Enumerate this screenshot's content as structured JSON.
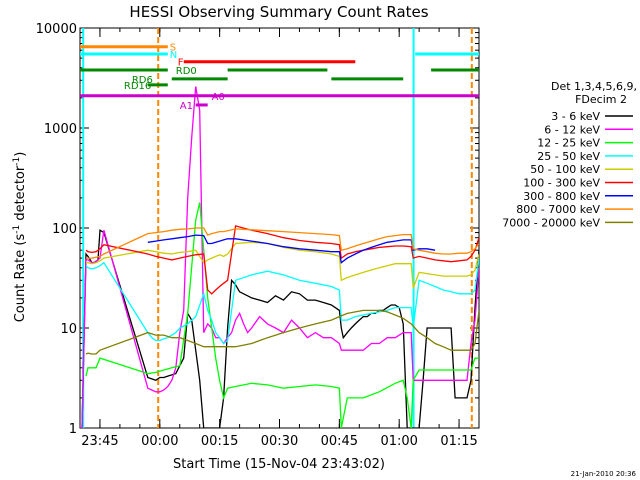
{
  "chart_data": {
    "type": "line",
    "title": "HESSI Observing Summary Count Rates",
    "xlabel": "Start Time (15-Nov-04 23:43:02)",
    "ylabel_main": "Count Rate (s",
    "ylabel_sup1": "-1",
    "ylabel_mid": " detector",
    "ylabel_sup2": "-1",
    "ylabel_end": ")",
    "yscale": "log",
    "ylim": [
      1,
      10000
    ],
    "xlim_minutes": [
      -3,
      97
    ],
    "x_ticks": [
      {
        "label": "23:45",
        "m": 2
      },
      {
        "label": "00:00",
        "m": 17
      },
      {
        "label": "00:15",
        "m": 32
      },
      {
        "label": "00:30",
        "m": 47
      },
      {
        "label": "00:45",
        "m": 62
      },
      {
        "label": "01:00",
        "m": 77
      },
      {
        "label": "01:15",
        "m": 92
      }
    ],
    "y_ticks": [
      {
        "label": "1",
        "v": 1
      },
      {
        "label": "10",
        "v": 10
      },
      {
        "label": "100",
        "v": 100
      },
      {
        "label": "1000",
        "v": 1000
      },
      {
        "label": "10000",
        "v": 10000
      }
    ],
    "legend_header": [
      "Det 1,3,4,5,6,9,",
      "FDecim 2"
    ],
    "series": [
      {
        "name": "3 - 6 keV",
        "color": "#000000",
        "x": [
          -3,
          -2.5,
          -1.5,
          -1,
          0,
          0.5,
          1.5,
          2,
          3,
          14,
          15,
          16,
          16.5,
          17,
          18,
          19,
          21,
          23,
          24,
          25,
          26,
          27,
          28,
          29,
          30,
          31,
          32,
          33,
          34,
          35,
          36,
          37,
          38,
          39,
          40,
          42,
          44,
          46,
          48,
          50,
          52,
          54,
          56,
          58,
          60,
          62,
          62.5,
          63,
          64,
          65,
          66,
          67,
          68,
          69,
          70,
          71,
          72,
          73,
          74,
          75,
          76,
          77,
          78,
          79,
          80,
          80.5,
          81,
          82,
          83,
          84,
          90,
          91,
          92,
          93,
          94,
          95,
          96,
          97
        ],
        "y": [
          1,
          1,
          55,
          52,
          45,
          45,
          48,
          95,
          90,
          3.2,
          3.1,
          3.0,
          3.1,
          3.2,
          3.2,
          3.3,
          3.5,
          5,
          14,
          12,
          6,
          3,
          1,
          1,
          1,
          1,
          1,
          2,
          10,
          30,
          27,
          23,
          22,
          21,
          20,
          19,
          18,
          21,
          19,
          23,
          22,
          19,
          19,
          18,
          17,
          15,
          10,
          8,
          9,
          10,
          11,
          12,
          13,
          13,
          14,
          14,
          15,
          15,
          16,
          17,
          17,
          16,
          11,
          1,
          1,
          1,
          1,
          1,
          3,
          10,
          10,
          2,
          2,
          2,
          2,
          3,
          16,
          60
        ]
      },
      {
        "name": "6 - 12 keV",
        "color": "#ff00ff",
        "x": [
          -3,
          -2.5,
          -1.5,
          -1,
          0,
          1,
          2,
          3,
          14,
          15,
          16,
          17,
          18,
          19,
          20,
          21,
          22,
          23,
          24,
          25,
          26,
          27,
          28,
          29,
          30,
          31,
          32,
          33,
          34,
          35,
          36,
          37,
          38,
          39,
          40,
          42,
          44,
          46,
          48,
          50,
          52,
          54,
          56,
          58,
          60,
          62,
          62.5,
          64,
          66,
          68,
          70,
          72,
          74,
          76,
          78,
          80,
          80.5,
          82,
          84,
          86,
          88,
          90,
          92,
          94,
          95,
          96,
          97
        ],
        "y": [
          1,
          1,
          48,
          48,
          45,
          46,
          50,
          95,
          2.5,
          2.4,
          2.3,
          2.3,
          2.4,
          2.6,
          3,
          4,
          9,
          15,
          200,
          800,
          2600,
          1500,
          9,
          11,
          10,
          8,
          8,
          7,
          8,
          9,
          12,
          14,
          11,
          9,
          10,
          13,
          11,
          10,
          9,
          12,
          10,
          8,
          9,
          8,
          8,
          7,
          6,
          6,
          6,
          6,
          7,
          7,
          8,
          8,
          9,
          9,
          3,
          3,
          3,
          3,
          3,
          3,
          3,
          3,
          7,
          12,
          40
        ]
      },
      {
        "name": "12 - 25 keV",
        "color": "#00ff00",
        "x": [
          -1.5,
          -1,
          0,
          1,
          2,
          14,
          16,
          18,
          20,
          22,
          24,
          26,
          27,
          28,
          29,
          30,
          31,
          32,
          33,
          34,
          36,
          40,
          44,
          48,
          52,
          56,
          60,
          62,
          62.5,
          64,
          68,
          72,
          76,
          78,
          79,
          80,
          80.5,
          82,
          86,
          90,
          94,
          95,
          96,
          97
        ],
        "y": [
          3.3,
          4,
          4,
          4,
          5,
          3.5,
          3.6,
          3.8,
          4,
          4.2,
          14,
          120,
          180,
          60,
          20,
          10,
          5,
          3,
          2,
          2.5,
          2.6,
          2.8,
          2.7,
          2.5,
          2.6,
          2.7,
          2.6,
          2.5,
          1,
          2,
          2,
          2.3,
          2.8,
          3,
          2,
          1,
          3,
          3.8,
          3.8,
          3.8,
          3.8,
          3.8,
          5,
          5
        ]
      },
      {
        "name": "25 - 50 keV",
        "color": "#00ffff",
        "x": [
          -1.5,
          -1,
          0,
          1,
          2,
          3,
          14,
          15,
          16,
          17,
          18,
          19,
          20,
          21,
          22,
          24,
          26,
          28,
          29,
          30,
          31,
          32,
          33,
          34,
          36,
          40,
          44,
          48,
          52,
          56,
          60,
          62,
          62.5,
          64,
          66,
          68,
          70,
          72,
          74,
          76,
          78,
          80,
          80.5,
          82,
          84,
          86,
          88,
          90,
          92,
          94,
          95,
          96,
          97
        ],
        "y": [
          42,
          40,
          39,
          40,
          42,
          45,
          9,
          8,
          7.5,
          7.5,
          7.8,
          8,
          8.5,
          9,
          10,
          11,
          13,
          22,
          15,
          12,
          9,
          8,
          7,
          7.5,
          30,
          34,
          37,
          34,
          30,
          28,
          26,
          24,
          12,
          12,
          13,
          13.5,
          14,
          14.5,
          15,
          16,
          16,
          16,
          10,
          30,
          28,
          26,
          24,
          23,
          22,
          22,
          22,
          24,
          50
        ]
      },
      {
        "name": "50 - 100 keV",
        "color": "#cccc00",
        "x": [
          -1.5,
          -1,
          0,
          1,
          2,
          3,
          14,
          16,
          18,
          20,
          22,
          24,
          26,
          28,
          29,
          30,
          31,
          32,
          33,
          34,
          36,
          40,
          44,
          48,
          52,
          56,
          60,
          62,
          62.5,
          64,
          66,
          68,
          70,
          72,
          74,
          76,
          78,
          80,
          80.5,
          82,
          84,
          86,
          88,
          90,
          92,
          94,
          95,
          96,
          97
        ],
        "y": [
          45,
          45,
          44,
          45,
          47,
          50,
          60,
          58,
          56,
          55,
          57,
          58,
          60,
          45,
          48,
          50,
          52,
          54,
          52,
          55,
          70,
          72,
          70,
          64,
          60,
          58,
          55,
          52,
          30,
          32,
          34,
          36,
          38,
          40,
          42,
          44,
          44,
          44,
          25,
          36,
          35,
          34,
          33,
          33,
          33,
          33,
          34,
          38,
          55
        ]
      },
      {
        "name": "100 - 300 keV",
        "color": "#ff0000",
        "x": [
          -1.5,
          -1,
          0,
          1,
          2,
          3,
          14,
          16,
          18,
          20,
          22,
          24,
          26,
          28,
          29,
          30,
          31,
          32,
          33,
          34,
          36,
          40,
          44,
          48,
          52,
          56,
          60,
          62,
          62.5,
          64,
          66,
          68,
          70,
          72,
          74,
          76,
          78,
          80,
          80.5,
          82,
          84,
          86,
          88,
          90,
          92,
          94,
          95,
          96,
          97
        ],
        "y": [
          60,
          58,
          57,
          58,
          62,
          68,
          55,
          52,
          50,
          48,
          50,
          52,
          54,
          55,
          24,
          22,
          24,
          26,
          28,
          30,
          105,
          95,
          88,
          80,
          75,
          72,
          70,
          68,
          50,
          55,
          58,
          60,
          62,
          64,
          65,
          66,
          66,
          65,
          50,
          52,
          50,
          48,
          47,
          46,
          47,
          48,
          52,
          60,
          80
        ]
      },
      {
        "name": "300 - 800 keV",
        "color": "#0000ff",
        "x": [
          14,
          16,
          18,
          20,
          22,
          24,
          26,
          28,
          29,
          30,
          31,
          32,
          33,
          34,
          36,
          40,
          44,
          48,
          52,
          56,
          60,
          62,
          62.5,
          64,
          66,
          68,
          70,
          72,
          74,
          76,
          78,
          80,
          80.5,
          82,
          84,
          86
        ],
        "y": [
          72,
          74,
          76,
          78,
          80,
          82,
          85,
          84,
          70,
          70,
          72,
          74,
          76,
          78,
          78,
          74,
          70,
          65,
          62,
          60,
          58,
          58,
          45,
          50,
          55,
          60,
          64,
          68,
          72,
          74,
          76,
          76,
          60,
          62,
          62,
          60
        ]
      },
      {
        "name": "800 - 7000 keV",
        "color": "#ff8800",
        "x": [
          -1.5,
          -1,
          0,
          1,
          2,
          3,
          14,
          16,
          18,
          20,
          22,
          24,
          26,
          28,
          29,
          30,
          31,
          32,
          33,
          34,
          36,
          40,
          44,
          48,
          52,
          56,
          60,
          62,
          62.5,
          64,
          66,
          68,
          70,
          72,
          74,
          76,
          78,
          80,
          80.5,
          82,
          84,
          86,
          88,
          90,
          92,
          94,
          95,
          96,
          97
        ],
        "y": [
          50,
          50,
          50,
          51,
          52,
          55,
          88,
          90,
          92,
          95,
          97,
          98,
          100,
          100,
          85,
          88,
          90,
          92,
          92,
          94,
          98,
          96,
          94,
          92,
          90,
          88,
          86,
          84,
          60,
          62,
          66,
          70,
          74,
          78,
          82,
          84,
          86,
          86,
          62,
          60,
          58,
          56,
          55,
          55,
          56,
          56,
          58,
          62,
          70
        ]
      },
      {
        "name": "7000 - 20000 keV",
        "color": "#808000",
        "x": [
          -1.5,
          -1,
          0,
          1,
          2,
          14,
          16,
          18,
          20,
          22,
          24,
          26,
          28,
          30,
          32,
          34,
          36,
          40,
          44,
          48,
          52,
          56,
          60,
          62,
          64,
          66,
          68,
          70,
          72,
          74,
          76,
          78,
          80,
          82,
          84,
          86,
          88,
          90,
          92,
          94,
          95,
          96,
          97
        ],
        "y": [
          5.5,
          5.6,
          5.5,
          5.5,
          6,
          9,
          8.5,
          8.5,
          8,
          8,
          7.5,
          7,
          6.5,
          6.5,
          6.5,
          6.5,
          6.5,
          7,
          8,
          9,
          10,
          11,
          12,
          13,
          14,
          14.5,
          15,
          15,
          15,
          14.5,
          13.5,
          12.5,
          11,
          9,
          8,
          7,
          6.5,
          6,
          6,
          6,
          6,
          7,
          15
        ]
      }
    ],
    "flag_bars": [
      {
        "label": "S",
        "color": "#ff8800",
        "v": 6500,
        "label_m": 19.5,
        "segments": [
          [
            -3,
            19
          ]
        ]
      },
      {
        "label": "N",
        "color": "#00ffff",
        "v": 5500,
        "label_m": 19.5,
        "segments": [
          [
            -3,
            19
          ],
          [
            81,
            97
          ]
        ]
      },
      {
        "label": "F",
        "color": "#ff0000",
        "v": 4600,
        "label_m": 21.5,
        "segments": [
          [
            23,
            66
          ]
        ]
      },
      {
        "label": "RD0",
        "color": "#008800",
        "v": 3800,
        "label_m": 21,
        "segments": [
          [
            -3,
            19
          ],
          [
            34,
            59
          ],
          [
            85,
            97
          ]
        ]
      },
      {
        "label": "RD6",
        "color": "#008800",
        "v": 3100,
        "label_m": 10,
        "segments": [
          [
            20,
            34
          ],
          [
            60,
            78
          ]
        ]
      },
      {
        "label": "RD16",
        "color": "#008800",
        "v": 2700,
        "label_m": 8,
        "segments": [
          [
            14,
            19
          ]
        ]
      },
      {
        "label": "A0",
        "color": "#cc00cc",
        "v": 2100,
        "label_m": 30,
        "segments": [
          [
            -3,
            97
          ]
        ]
      },
      {
        "label": "A1",
        "color": "#cc00cc",
        "v": 1700,
        "label_m": 22,
        "segments": [
          [
            26,
            29
          ]
        ]
      }
    ],
    "vlines": [
      {
        "m": -2.2,
        "color": "#00ffff",
        "style": "solid"
      },
      {
        "m": 16.6,
        "color": "#ff8800",
        "style": "dashed"
      },
      {
        "m": 80.6,
        "color": "#00ffff",
        "style": "solid"
      },
      {
        "m": 95.2,
        "color": "#ff8800",
        "style": "dashed"
      }
    ],
    "footer_date": "21-Jan-2010 20:36"
  }
}
